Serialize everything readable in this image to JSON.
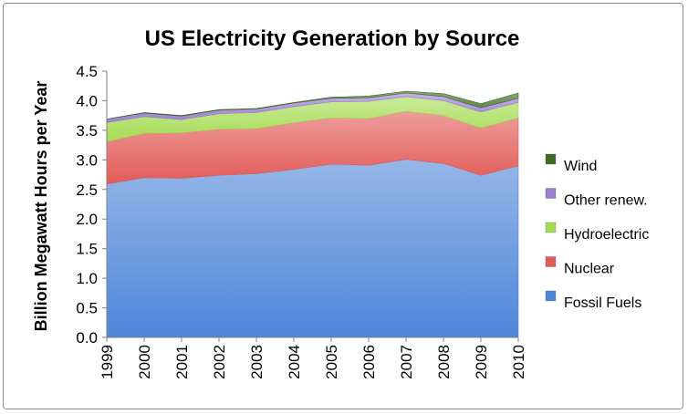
{
  "chart_data": {
    "type": "area",
    "stacked": true,
    "title": "US Electricity Generation by Source",
    "ylabel": "Billion Megawatt Hours per Year",
    "xlabel": "",
    "ylim": [
      0,
      4.5
    ],
    "yticks": [
      "0.0",
      "0.5",
      "1.0",
      "1.5",
      "2.0",
      "2.5",
      "3.0",
      "3.5",
      "4.0",
      "4.5"
    ],
    "categories": [
      "1999",
      "2000",
      "2001",
      "2002",
      "2003",
      "2004",
      "2005",
      "2006",
      "2007",
      "2008",
      "2009",
      "2010"
    ],
    "legend_position": "right",
    "grid": false,
    "series": [
      {
        "name": "Fossil Fuels",
        "color": "#4f86d9",
        "values": [
          2.59,
          2.7,
          2.69,
          2.74,
          2.77,
          2.84,
          2.93,
          2.91,
          3.01,
          2.94,
          2.74,
          2.9
        ]
      },
      {
        "name": "Nuclear",
        "color": "#e25b57",
        "values": [
          0.72,
          0.75,
          0.77,
          0.78,
          0.76,
          0.79,
          0.78,
          0.79,
          0.81,
          0.81,
          0.8,
          0.81
        ]
      },
      {
        "name": "Hydroelectric",
        "color": "#a6dc54",
        "values": [
          0.32,
          0.28,
          0.22,
          0.26,
          0.27,
          0.27,
          0.27,
          0.29,
          0.25,
          0.25,
          0.27,
          0.26
        ]
      },
      {
        "name": "Other renew.",
        "color": "#9b7fd3",
        "values": [
          0.06,
          0.06,
          0.06,
          0.06,
          0.06,
          0.06,
          0.06,
          0.06,
          0.06,
          0.07,
          0.07,
          0.07
        ]
      },
      {
        "name": "Wind",
        "color": "#3f6b26",
        "values": [
          0.0,
          0.01,
          0.01,
          0.01,
          0.01,
          0.01,
          0.02,
          0.03,
          0.03,
          0.05,
          0.07,
          0.09
        ]
      }
    ]
  }
}
